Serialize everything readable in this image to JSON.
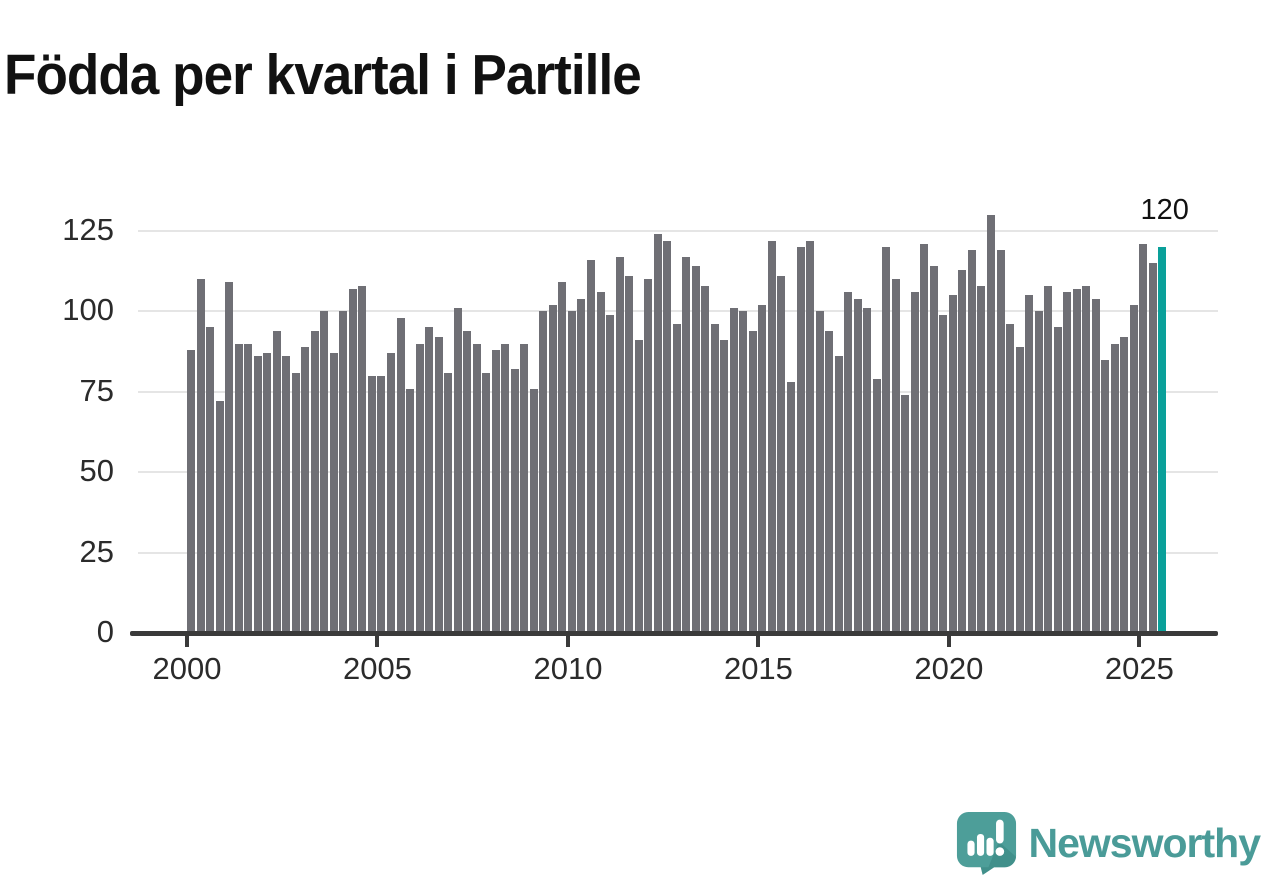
{
  "title": "Födda per kvartal i Partille",
  "annotation": {
    "label": "120"
  },
  "branding": {
    "name": "Newsworthy"
  },
  "colors": {
    "bar": "#6f6f75",
    "highlight": "#0aa09a",
    "gridline": "#e5e5e5",
    "axis": "#3a3a3a",
    "tick_label": "#2b2b2b",
    "title": "#111111",
    "brand_teal": "#4a9b98",
    "brand_teal_dark": "#3f8d88"
  },
  "chart_data": {
    "type": "bar",
    "title": "Födda per kvartal i Partille",
    "xlabel": "",
    "ylabel": "",
    "x_tick_labels": [
      "2000",
      "2005",
      "2010",
      "2015",
      "2020",
      "2025"
    ],
    "y_tick_labels": [
      "0",
      "25",
      "50",
      "75",
      "100",
      "125"
    ],
    "ylim": [
      0,
      130
    ],
    "grid": "horizontal",
    "legend": "none",
    "series": [
      {
        "year": 2000,
        "values": [
          88,
          110,
          95,
          72
        ]
      },
      {
        "year": 2001,
        "values": [
          109,
          90,
          90,
          86
        ]
      },
      {
        "year": 2002,
        "values": [
          87,
          94,
          86,
          81
        ]
      },
      {
        "year": 2003,
        "values": [
          89,
          94,
          100,
          87
        ]
      },
      {
        "year": 2004,
        "values": [
          100,
          107,
          108,
          80
        ]
      },
      {
        "year": 2005,
        "values": [
          80,
          87,
          98,
          76
        ]
      },
      {
        "year": 2006,
        "values": [
          90,
          95,
          92,
          81
        ]
      },
      {
        "year": 2007,
        "values": [
          101,
          94,
          90,
          81
        ]
      },
      {
        "year": 2008,
        "values": [
          88,
          90,
          82,
          90
        ]
      },
      {
        "year": 2009,
        "values": [
          76,
          100,
          102,
          109
        ]
      },
      {
        "year": 2010,
        "values": [
          100,
          104,
          116,
          106
        ]
      },
      {
        "year": 2011,
        "values": [
          99,
          117,
          111,
          91
        ]
      },
      {
        "year": 2012,
        "values": [
          110,
          124,
          122,
          96
        ]
      },
      {
        "year": 2013,
        "values": [
          117,
          114,
          108,
          96
        ]
      },
      {
        "year": 2014,
        "values": [
          91,
          101,
          100,
          94
        ]
      },
      {
        "year": 2015,
        "values": [
          102,
          122,
          111,
          78
        ]
      },
      {
        "year": 2016,
        "values": [
          120,
          122,
          100,
          94
        ]
      },
      {
        "year": 2017,
        "values": [
          86,
          106,
          104,
          101
        ]
      },
      {
        "year": 2018,
        "values": [
          79,
          120,
          110,
          74
        ]
      },
      {
        "year": 2019,
        "values": [
          106,
          121,
          114,
          99
        ]
      },
      {
        "year": 2020,
        "values": [
          105,
          113,
          119,
          108
        ]
      },
      {
        "year": 2021,
        "values": [
          130,
          119,
          96,
          89
        ]
      },
      {
        "year": 2022,
        "values": [
          105,
          100,
          108,
          95
        ]
      },
      {
        "year": 2023,
        "values": [
          106,
          107,
          108,
          104
        ]
      },
      {
        "year": 2024,
        "values": [
          85,
          90,
          92,
          102
        ]
      },
      {
        "year": 2025,
        "values": [
          121,
          115,
          120
        ]
      }
    ],
    "highlight": {
      "year": 2025,
      "quarter": "Q3",
      "value": 120
    }
  }
}
